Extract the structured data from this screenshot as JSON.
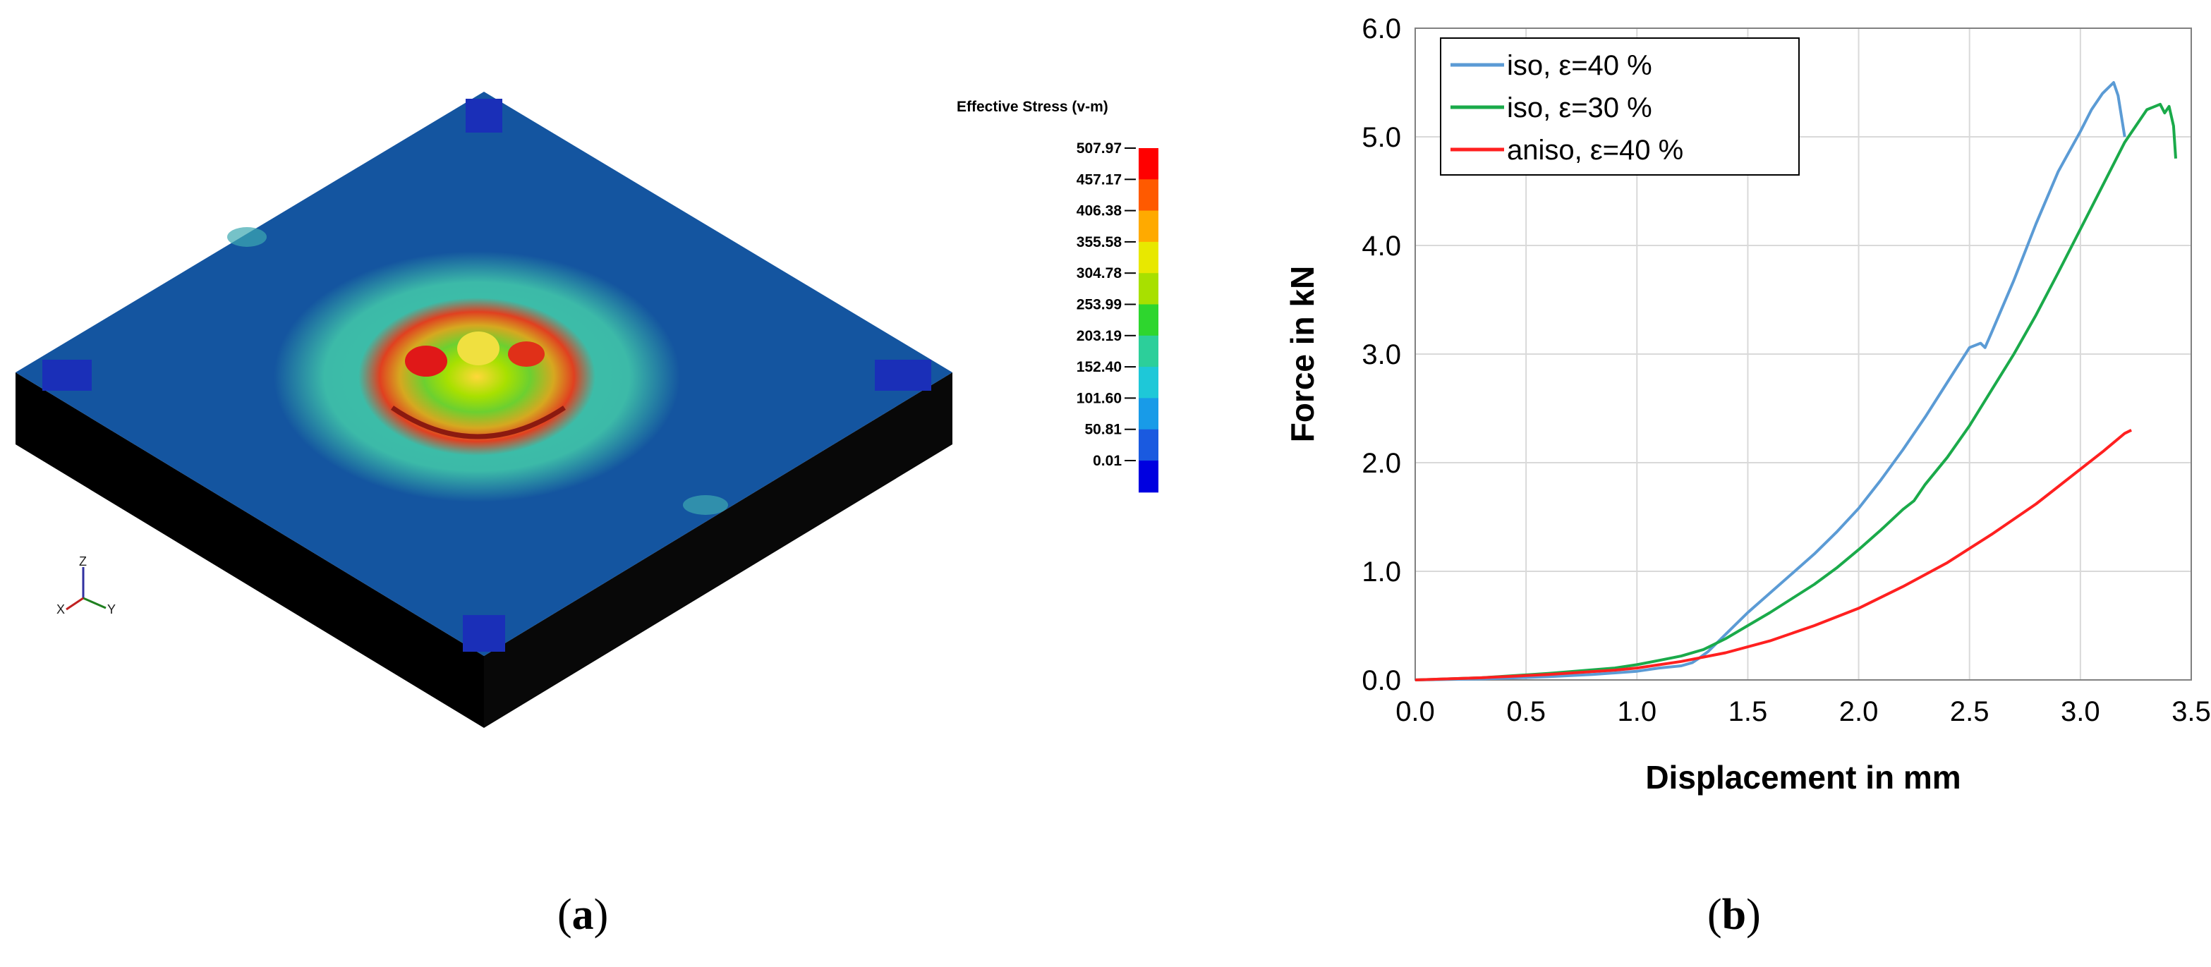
{
  "panel_a": {
    "legend_title": "Effective Stress (v-m)",
    "legend_values": [
      "507.97",
      "457.17",
      "406.38",
      "355.58",
      "304.78",
      "253.99",
      "203.19",
      "152.40",
      "101.60",
      "50.81",
      "0.01"
    ],
    "legend_colors": [
      "#ff0000",
      "#ff5a00",
      "#ffaa00",
      "#e8e800",
      "#a8e000",
      "#2ed62e",
      "#2ccf9a",
      "#1ec8d8",
      "#189be8",
      "#1a5ae0",
      "#0000e0"
    ],
    "axis_triad": {
      "z": "Z",
      "x": "X",
      "y": "Y"
    },
    "caption_open": "(",
    "caption_letter": "a",
    "caption_close": ")"
  },
  "panel_b": {
    "caption_open": "(",
    "caption_letter": "b",
    "caption_close": ")"
  },
  "chart_data": {
    "type": "line",
    "xlabel": "Displacement in mm",
    "ylabel": "Force in kN",
    "xlim": [
      0.0,
      3.5
    ],
    "ylim": [
      0.0,
      6.0
    ],
    "x_ticks": [
      "0.0",
      "0.5",
      "1.0",
      "1.5",
      "2.0",
      "2.5",
      "3.0",
      "3.5"
    ],
    "y_ticks": [
      "0.0",
      "1.0",
      "2.0",
      "3.0",
      "4.0",
      "5.0",
      "6.0"
    ],
    "grid": true,
    "legend_position": "top-left",
    "series": [
      {
        "name": "iso, ε=40 %",
        "color": "#5b9bd5",
        "x": [
          0.0,
          0.3,
          0.6,
          0.8,
          1.0,
          1.1,
          1.2,
          1.25,
          1.28,
          1.32,
          1.4,
          1.5,
          1.6,
          1.7,
          1.8,
          1.9,
          2.0,
          2.1,
          2.2,
          2.3,
          2.4,
          2.5,
          2.55,
          2.57,
          2.6,
          2.7,
          2.8,
          2.9,
          3.0,
          3.05,
          3.1,
          3.15,
          3.17,
          3.2
        ],
        "y": [
          0.0,
          0.01,
          0.03,
          0.05,
          0.08,
          0.11,
          0.13,
          0.16,
          0.2,
          0.26,
          0.42,
          0.62,
          0.8,
          0.98,
          1.16,
          1.36,
          1.58,
          1.84,
          2.12,
          2.42,
          2.74,
          3.06,
          3.1,
          3.06,
          3.2,
          3.68,
          4.2,
          4.68,
          5.05,
          5.25,
          5.4,
          5.5,
          5.38,
          5.0
        ]
      },
      {
        "name": "iso, ε=30 %",
        "color": "#1aaa4a",
        "x": [
          0.0,
          0.3,
          0.6,
          0.9,
          1.0,
          1.1,
          1.2,
          1.3,
          1.4,
          1.5,
          1.6,
          1.7,
          1.8,
          1.9,
          2.0,
          2.1,
          2.2,
          2.25,
          2.3,
          2.4,
          2.5,
          2.6,
          2.7,
          2.8,
          2.9,
          3.0,
          3.1,
          3.2,
          3.3,
          3.36,
          3.38,
          3.4,
          3.42,
          3.43
        ],
        "y": [
          0.0,
          0.02,
          0.06,
          0.11,
          0.14,
          0.18,
          0.22,
          0.28,
          0.38,
          0.5,
          0.62,
          0.75,
          0.88,
          1.03,
          1.2,
          1.38,
          1.57,
          1.65,
          1.8,
          2.05,
          2.34,
          2.67,
          3.0,
          3.36,
          3.75,
          4.15,
          4.55,
          4.95,
          5.25,
          5.3,
          5.22,
          5.28,
          5.1,
          4.8
        ]
      },
      {
        "name": "aniso, ε=40 %",
        "color": "#ff2020",
        "x": [
          0.0,
          0.3,
          0.6,
          0.9,
          1.0,
          1.2,
          1.4,
          1.6,
          1.8,
          2.0,
          2.2,
          2.4,
          2.6,
          2.8,
          3.0,
          3.1,
          3.2,
          3.23
        ],
        "y": [
          0.0,
          0.02,
          0.05,
          0.09,
          0.11,
          0.17,
          0.25,
          0.36,
          0.5,
          0.66,
          0.86,
          1.08,
          1.34,
          1.62,
          1.94,
          2.1,
          2.27,
          2.3
        ]
      }
    ]
  }
}
